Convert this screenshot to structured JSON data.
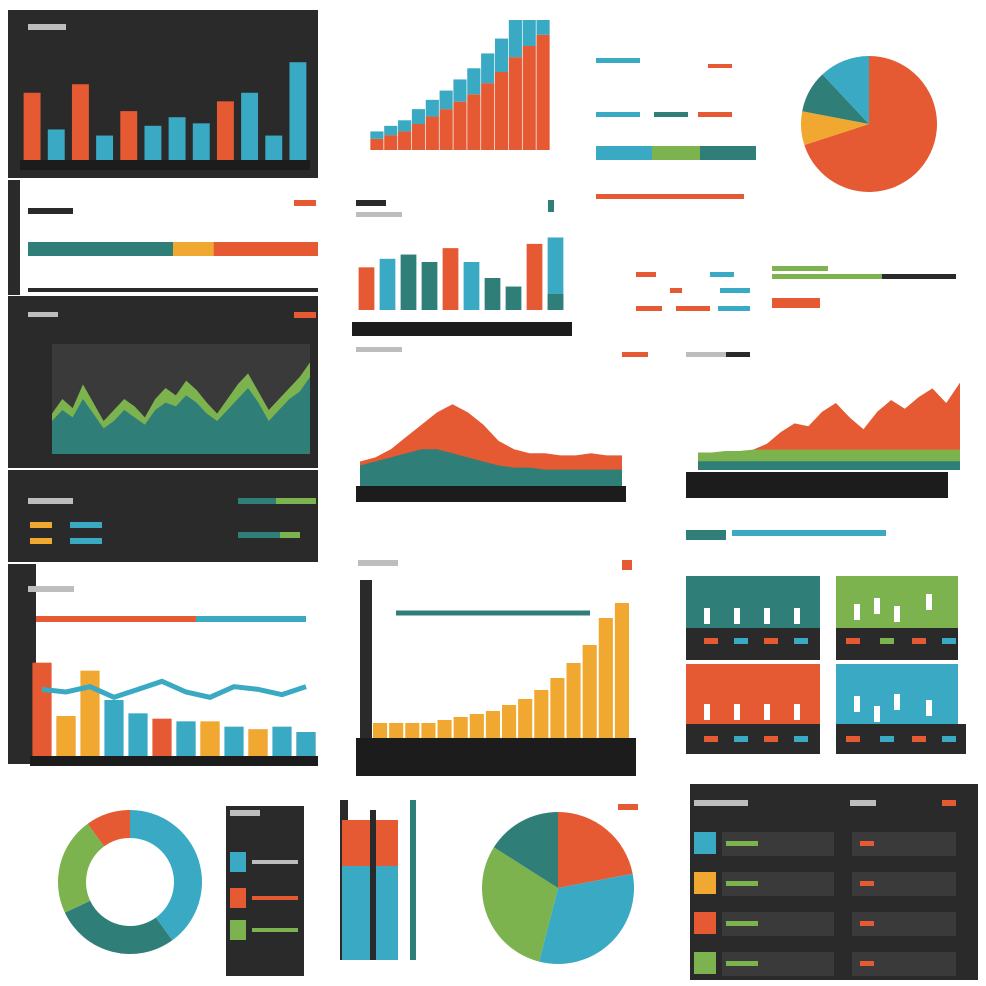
{
  "colors": {
    "dark": "#2a2a2a",
    "darker": "#1c1c1c",
    "orange": "#e55a33",
    "teal": "#2f7f78",
    "cyan": "#3aa9c3",
    "green": "#7cb34e",
    "yellow": "#f0a830",
    "grey": "#bdbdbd",
    "white": "#ffffff"
  },
  "chart_data": [
    {
      "id": "bars-top-left",
      "type": "bar",
      "series": [
        {
          "color": "#e55a33",
          "values": [
            55,
            0,
            62,
            0,
            40,
            0,
            0,
            0,
            48,
            0,
            0,
            0
          ]
        },
        {
          "color": "#3aa9c3",
          "values": [
            0,
            25,
            0,
            20,
            0,
            28,
            35,
            30,
            0,
            55,
            20,
            80
          ]
        }
      ],
      "ylim": [
        0,
        90
      ]
    },
    {
      "id": "stacked-progress-left",
      "type": "bar",
      "segments": [
        {
          "color": "#2f7f78",
          "value": 50
        },
        {
          "color": "#f0a830",
          "value": 14
        },
        {
          "color": "#e55a33",
          "value": 36
        }
      ]
    },
    {
      "id": "bars-center-top",
      "type": "bar",
      "series": [
        {
          "color": "#e55a33",
          "values": [
            40,
            0,
            0,
            0,
            58,
            0,
            0,
            0,
            62,
            0
          ]
        },
        {
          "color": "#3aa9c3",
          "values": [
            0,
            48,
            0,
            0,
            0,
            45,
            0,
            0,
            0,
            68
          ]
        },
        {
          "color": "#2f7f78",
          "values": [
            0,
            0,
            52,
            45,
            0,
            0,
            30,
            22,
            0,
            15
          ]
        }
      ],
      "ylim": [
        0,
        75
      ]
    },
    {
      "id": "area-left",
      "type": "area",
      "series": [
        {
          "color": "#7cb34e",
          "values": [
            22,
            30,
            25,
            38,
            28,
            18,
            24,
            30,
            26,
            20,
            30,
            36,
            32,
            40,
            35,
            28,
            22,
            30,
            38,
            44,
            34,
            24,
            30,
            36,
            42,
            50
          ]
        },
        {
          "color": "#2f7f78",
          "values": [
            18,
            24,
            20,
            30,
            22,
            14,
            18,
            24,
            20,
            16,
            24,
            28,
            26,
            32,
            28,
            22,
            18,
            24,
            30,
            36,
            28,
            18,
            24,
            30,
            34,
            42
          ]
        }
      ],
      "ylim": [
        0,
        60
      ]
    },
    {
      "id": "area-center",
      "type": "area",
      "series": [
        {
          "color": "#e55a33",
          "values": [
            12,
            14,
            18,
            24,
            30,
            36,
            40,
            36,
            30,
            22,
            18,
            16,
            16,
            15,
            15,
            16,
            15,
            15
          ]
        },
        {
          "color": "#2f7f78",
          "values": [
            10,
            12,
            14,
            16,
            18,
            18,
            16,
            14,
            12,
            10,
            9,
            9,
            8,
            8,
            8,
            8,
            8,
            8
          ]
        }
      ],
      "ylim": [
        0,
        45
      ]
    },
    {
      "id": "area-right",
      "type": "area",
      "series": [
        {
          "color": "#e55a33",
          "values": [
            6,
            8,
            10,
            12,
            14,
            18,
            26,
            32,
            30,
            40,
            46,
            36,
            28,
            40,
            48,
            42,
            50,
            56,
            46,
            60
          ]
        },
        {
          "color": "#7cb34e",
          "values": [
            12,
            12,
            13,
            13,
            14,
            14,
            14,
            14,
            14,
            14,
            14,
            14,
            14,
            14,
            14,
            14,
            14,
            14,
            14,
            14
          ]
        },
        {
          "color": "#2f7f78",
          "values": [
            6,
            6,
            6,
            6,
            6,
            6,
            6,
            6,
            6,
            6,
            6,
            6,
            6,
            6,
            6,
            6,
            6,
            6,
            6,
            6
          ]
        }
      ],
      "ylim": [
        0,
        70
      ]
    },
    {
      "id": "combo-bottom-left",
      "type": "bar",
      "series": [
        {
          "color": "#e55a33",
          "values": [
            70,
            28,
            0,
            0,
            0,
            28,
            22,
            24,
            0,
            20,
            0,
            18
          ]
        },
        {
          "color": "#f0a830",
          "values": [
            0,
            30,
            64,
            0,
            0,
            0,
            0,
            26,
            0,
            20,
            0,
            14
          ]
        },
        {
          "color": "#3aa9c3",
          "values": [
            0,
            0,
            0,
            42,
            32,
            0,
            26,
            0,
            22,
            0,
            22,
            18
          ]
        }
      ],
      "line": {
        "color": "#3aa9c3",
        "values": [
          50,
          48,
          52,
          44,
          50,
          56,
          48,
          44,
          52,
          50,
          46,
          52
        ]
      },
      "ylim": [
        0,
        90
      ]
    },
    {
      "id": "growth-bars",
      "type": "bar",
      "series": [
        {
          "color": "#f0a830",
          "values": [
            10,
            10,
            10,
            10,
            12,
            14,
            16,
            18,
            22,
            26,
            32,
            40,
            50,
            62,
            80,
            90
          ]
        }
      ],
      "line_level": 85,
      "ylim": [
        0,
        100
      ]
    },
    {
      "id": "donut",
      "type": "pie",
      "values": [
        40,
        28,
        22,
        10
      ],
      "colors": [
        "#3aa9c3",
        "#2f7f78",
        "#7cb34e",
        "#e55a33"
      ]
    },
    {
      "id": "pie",
      "type": "pie",
      "values": [
        22,
        32,
        30,
        16
      ],
      "colors": [
        "#e55a33",
        "#3aa9c3",
        "#7cb34e",
        "#2f7f78"
      ]
    },
    {
      "id": "pie-top-right",
      "type": "pie",
      "values": [
        70,
        8,
        10,
        12
      ],
      "colors": [
        "#e55a33",
        "#f0a830",
        "#2f7f78",
        "#3aa9c3"
      ]
    },
    {
      "id": "staircase-top",
      "type": "bar",
      "series": [
        {
          "color": "#e55a33",
          "values": [
            6,
            8,
            10,
            14,
            18,
            22,
            26,
            30,
            36,
            42,
            50,
            56,
            62
          ]
        },
        {
          "color": "#3aa9c3",
          "values": [
            4,
            5,
            6,
            8,
            9,
            10,
            12,
            14,
            16,
            18,
            20,
            22,
            24
          ]
        }
      ],
      "ylim": [
        0,
        70
      ]
    }
  ]
}
